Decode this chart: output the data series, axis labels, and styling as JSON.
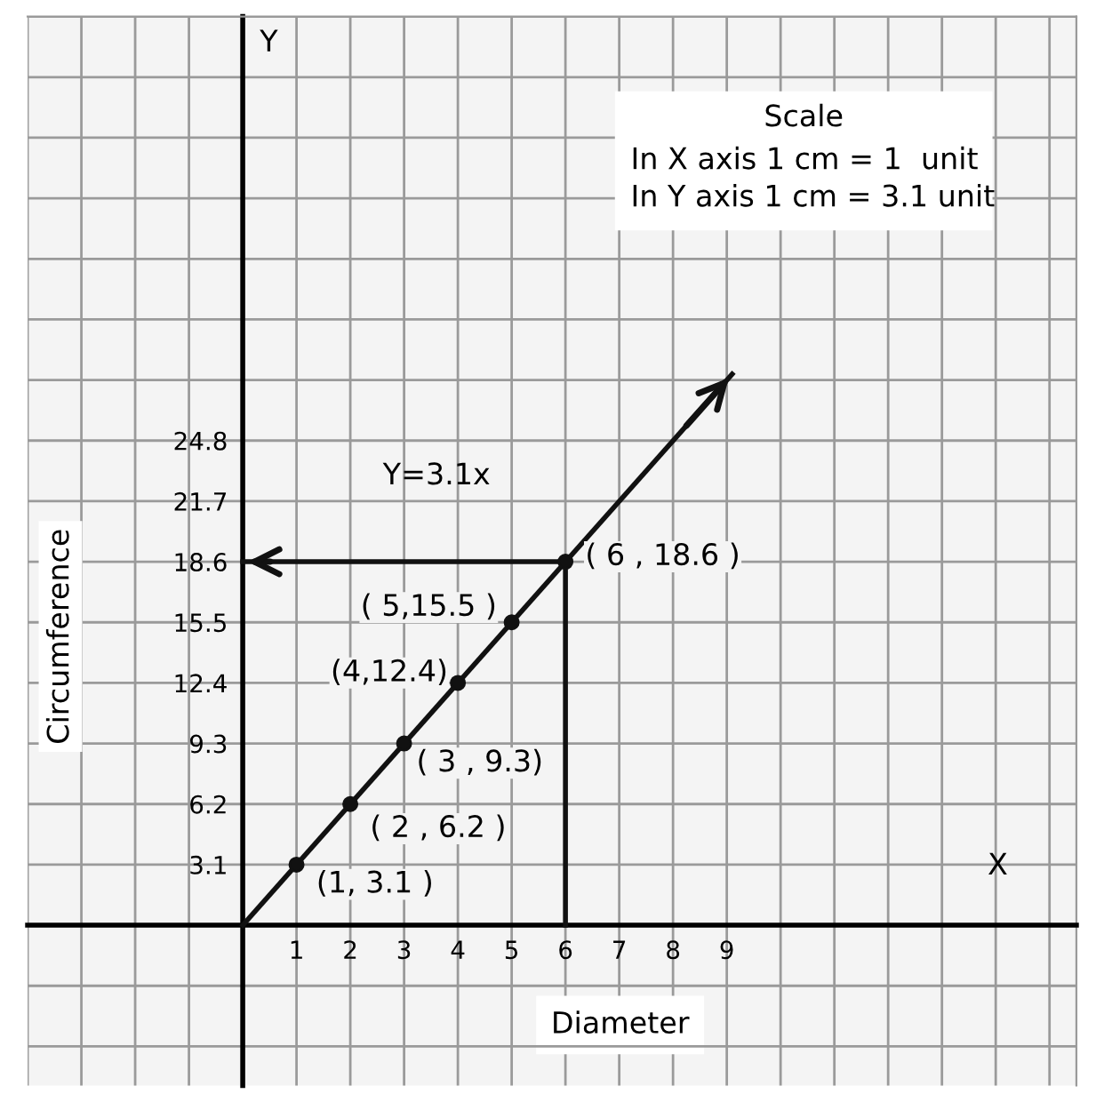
{
  "chart_data": {
    "type": "line",
    "xlabel": "Diameter",
    "ylabel": "Circumference",
    "xlim": [
      -4,
      15.5
    ],
    "ylim": [
      -8.2,
      46.5
    ],
    "xticks": [
      {
        "value": -4,
        "label": null
      },
      {
        "value": -3,
        "label": null
      },
      {
        "value": -2,
        "label": null
      },
      {
        "value": -1,
        "label": null
      },
      {
        "value": 0,
        "label": null
      },
      1,
      2,
      3,
      4,
      5,
      6,
      7,
      8,
      9,
      {
        "value": 10,
        "label": null
      },
      {
        "value": 11,
        "label": null
      },
      {
        "value": 12,
        "label": null
      },
      {
        "value": 13,
        "label": null
      },
      {
        "value": 14,
        "label": null
      },
      {
        "value": 15,
        "label": null
      }
    ],
    "yticks": [
      {
        "value": -6.2,
        "label": null
      },
      {
        "value": -3.1,
        "label": null
      },
      {
        "value": 0,
        "label": null
      },
      3.1,
      6.2,
      9.3,
      12.4,
      15.5,
      18.6,
      21.7,
      24.8,
      {
        "value": 27.9,
        "label": null
      },
      {
        "value": 31,
        "label": null
      },
      {
        "value": 34.1,
        "label": null
      },
      {
        "value": 37.2,
        "label": null
      },
      {
        "value": 40.3,
        "label": null
      },
      {
        "value": 43.4,
        "label": null
      },
      {
        "value": 46.5,
        "label": null
      }
    ],
    "grid": true,
    "series": [
      {
        "color": "#111111",
        "x": [
          0,
          9.1
        ],
        "values": [
          0,
          28.2
        ]
      },
      {
        "type": "scatter",
        "color": "#111111",
        "marker": "circle",
        "x": [
          1,
          2,
          3,
          4,
          5,
          6
        ],
        "values": [
          3.1,
          6.2,
          9.3,
          12.4,
          15.5,
          18.6
        ]
      },
      {
        "type": "line",
        "color": "#111111",
        "x": [
          6,
          6,
          0
        ],
        "values": [
          0,
          18.6,
          18.6
        ]
      }
    ],
    "annotations": [
      {
        "text": "(1, 3.1 )",
        "x": 1,
        "y": 3.1
      },
      {
        "text": "( 2 , 6.2 )",
        "x": 2,
        "y": 6.2
      },
      {
        "text": "( 3 , 9.3)",
        "x": 3,
        "y": 9.3
      },
      {
        "text": "(4,12.4)",
        "x": 4,
        "y": 12.4
      },
      {
        "text": "( 5,15.5 )",
        "x": 5,
        "y": 15.5
      },
      {
        "text": "( 6 , 18.6 )",
        "x": 6,
        "y": 18.6
      },
      "Y=3.1x",
      "Scale",
      "In X axis 1 cm = 1  unit",
      "In Y axis 1 cm = 3.1 unit",
      "X",
      "Y"
    ]
  }
}
